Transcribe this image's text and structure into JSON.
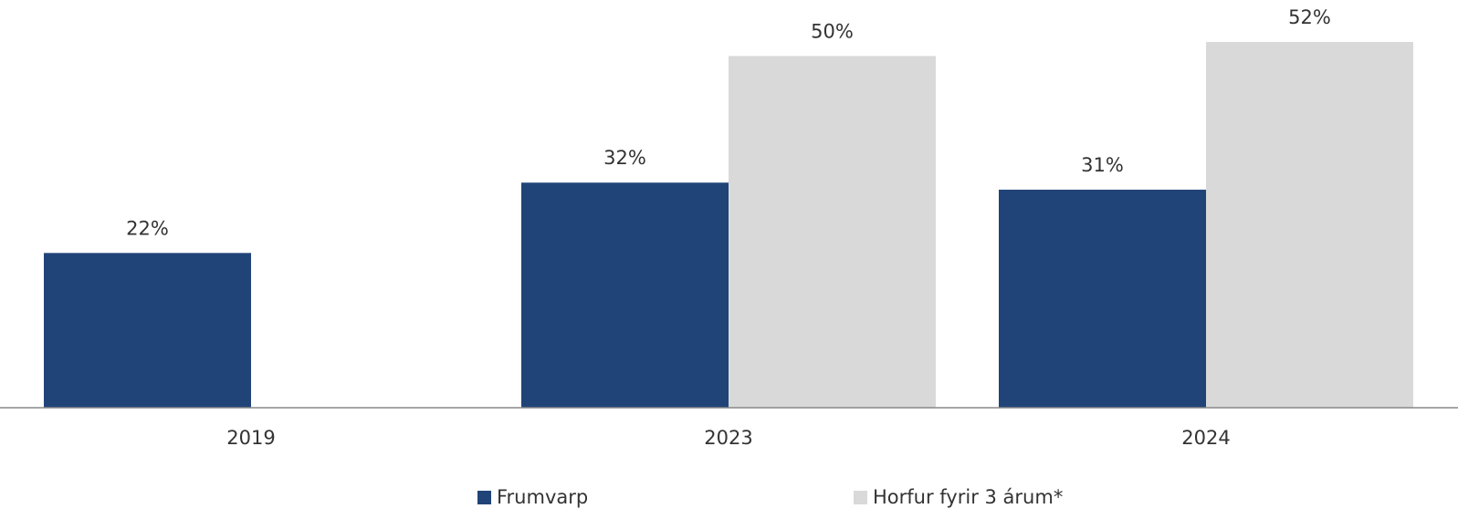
{
  "chart_data": {
    "type": "bar",
    "categories": [
      "2019",
      "2023",
      "2024"
    ],
    "series": [
      {
        "name": "Frumvarp",
        "color": "#214478",
        "values": [
          22,
          32,
          31
        ],
        "value_labels": [
          "22%",
          "32%",
          "31%"
        ]
      },
      {
        "name": "Horfur fyrir 3 árum*",
        "color": "#d9d9d9",
        "values": [
          null,
          50,
          52
        ],
        "value_labels": [
          null,
          "50%",
          "52%"
        ]
      }
    ]
  }
}
